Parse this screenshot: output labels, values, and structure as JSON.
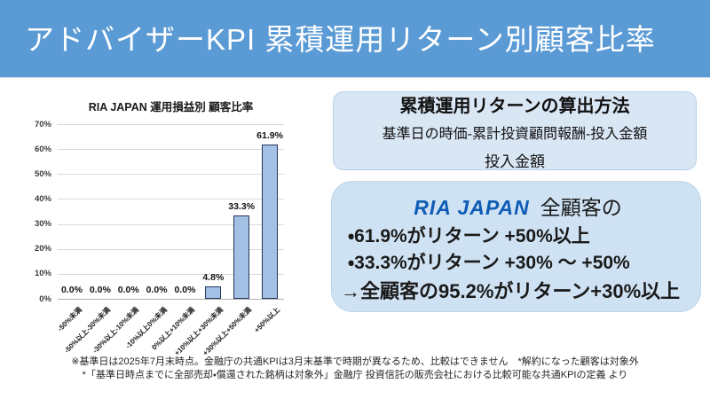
{
  "header": {
    "title": "アドバイザーKPI 累積運用リターン別顧客比率"
  },
  "chart_data": {
    "type": "bar",
    "title": "RIA JAPAN 運用損益別 顧客比率",
    "categories": [
      "-50%未満",
      "-50%以上-30%未満",
      "-30%以上-10%未満",
      "-10%以上0%未満",
      "0%以上+10%未満",
      "+10%以上+30%未満",
      "+30%以上+50%未満",
      "+50%以上"
    ],
    "values": [
      0.0,
      0.0,
      0.0,
      0.0,
      0.0,
      4.8,
      33.3,
      61.9
    ],
    "value_labels": [
      "0.0%",
      "0.0%",
      "0.0%",
      "0.0%",
      "0.0%",
      "4.8%",
      "33.3%",
      "61.9%"
    ],
    "xlabel": "",
    "ylabel": "",
    "ylim": [
      0,
      70
    ],
    "ytick_step": 10,
    "ytick_labels": [
      "0%",
      "10%",
      "20%",
      "30%",
      "40%",
      "50%",
      "60%",
      "70%"
    ],
    "grid": true,
    "legend": false
  },
  "formula_box": {
    "title": "累積運用リターンの算出方法",
    "numerator": "基準日の時価-累計投資顧問報酬-投入金額",
    "denominator": "投入金額"
  },
  "summary_box": {
    "brand": "RIA JAPAN",
    "brand_suffix": "全顧客の",
    "bullets": [
      "・61.9%がリターン +50%以上",
      "・33.3%がリターン +30% ～ +50%"
    ],
    "conclusion": "→全顧客の95.2%がリターン+30%以上"
  },
  "footnotes": [
    "※基準日は2025年7月末時点。金融庁の共通KPIは3月末基準で時期が異なるため、比較はできません　*解約になった顧客は対象外",
    "*「基準日時点までに全部売却・償還された銘柄は対象外」金融庁 投資信託の販売会社における比較可能な共通KPIの定義 より"
  ],
  "colors": {
    "header_blue": "#5B9BD5",
    "bar_fill": "#A3C1E5",
    "bar_border": "#25365A",
    "formula_box_fill": "#D9E6F4",
    "summary_box_fill": "#CFE2F3",
    "brand_blue": "#0F5CB5"
  }
}
